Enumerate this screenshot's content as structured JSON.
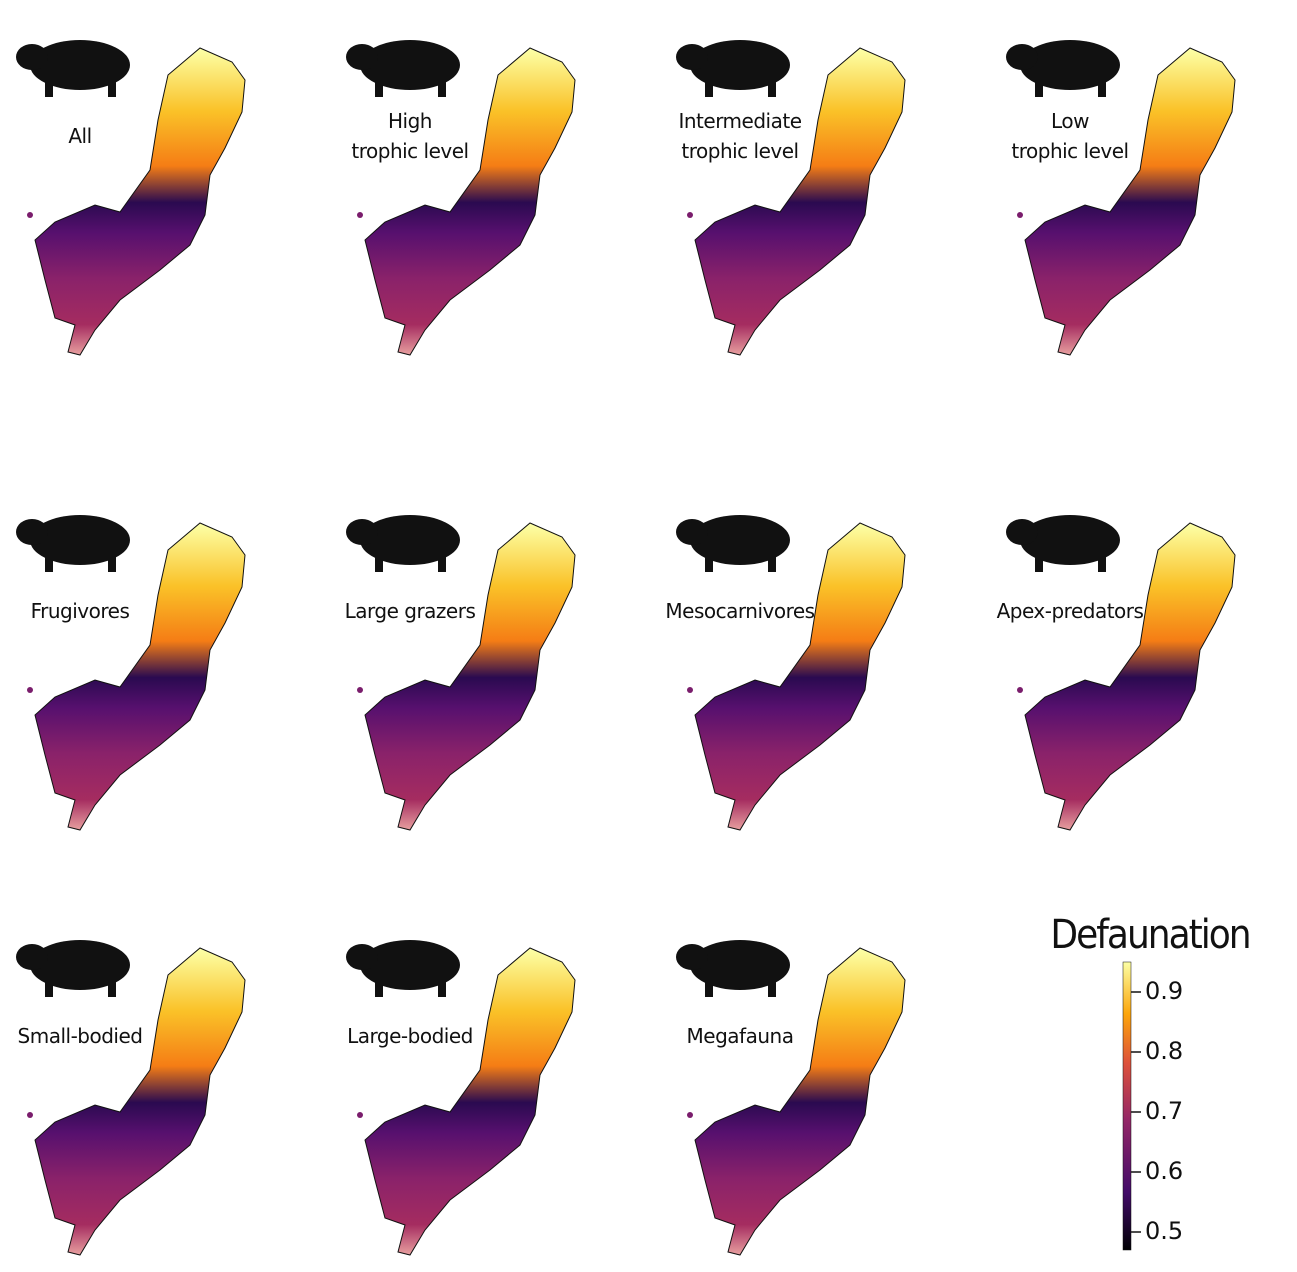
{
  "panels": [
    {
      "label": [
        "All"
      ]
    },
    {
      "label": [
        "High",
        "trophic level"
      ]
    },
    {
      "label": [
        "Intermediate",
        "trophic level"
      ]
    },
    {
      "label": [
        "Low",
        "trophic level"
      ]
    },
    {
      "label": [
        "Frugivores"
      ]
    },
    {
      "label": [
        "Large grazers"
      ]
    },
    {
      "label": [
        "Mesocarnivores"
      ]
    },
    {
      "label": [
        "Apex-predators"
      ]
    },
    {
      "label": [
        "Small-bodied"
      ]
    },
    {
      "label": [
        "Large-bodied"
      ]
    },
    {
      "label": [
        "Megafauna"
      ]
    }
  ],
  "colorbar": {
    "title": "Defaunation",
    "range": [
      0.47,
      0.95
    ],
    "ticks": [
      0.5,
      0.6,
      0.7,
      0.8,
      0.9
    ]
  }
}
